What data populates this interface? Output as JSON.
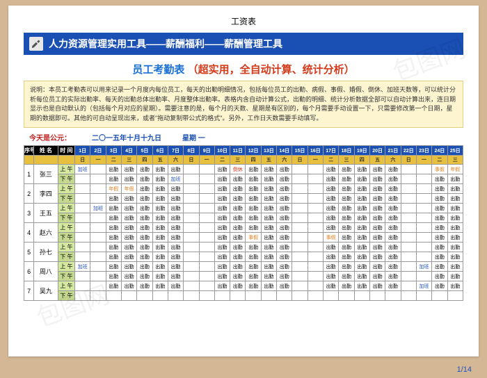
{
  "doc_title": "工资表",
  "banner_text": "人力资源管理实用工具——薪酬福利——薪酬管理工具",
  "subtitle_blue": "员工考勤表",
  "subtitle_red": "（超实用，全自动计算、统计分析）",
  "description": "说明：本员工考勤表可以用来记录一个月度内每位员工，每天的出勤明细情况，包括每位员工的出勤、病假、事假、婚假、倒休、加班天数等，可以统计分析每位员工的实际出勤率、每天的出勤总体出勤率、月度整体出勤率。表格内含自动计算公式，出勤的明细、统计分析数据全部可以自动计算出来，连日期显示也是自动默认的（包括每个月对应的星期）。需要注意的是，每个月的天数、星期是有区别的，每个月需要手动设置一下，只需要修改第一个日期，星期的数据即可。其他的可自动呈现出来，或者\"拖动复制带公式的格式\"。另外，工作日天数需要手动填写。",
  "today_label": "今天是公元：",
  "today_date": "二〇一五年十月十九日",
  "today_weekday": "星期 一",
  "header_cols": {
    "idx": "序号",
    "name": "姓 名",
    "period": "时 间"
  },
  "days": [
    "1日",
    "2日",
    "3日",
    "4日",
    "5日",
    "6日",
    "7日",
    "8日",
    "9日",
    "10日",
    "11日",
    "12日",
    "13日",
    "14日",
    "15日",
    "16日",
    "17日",
    "18日",
    "19日",
    "20日",
    "21日",
    "22日",
    "23日",
    "24日",
    "25日"
  ],
  "weekdays": [
    "日",
    "一",
    "二",
    "三",
    "四",
    "五",
    "六",
    "日",
    "一",
    "二",
    "三",
    "四",
    "五",
    "六",
    "日",
    "一",
    "二",
    "三",
    "四",
    "五",
    "六",
    "日",
    "一",
    "二",
    "三"
  ],
  "period_am": "上 午",
  "period_pm": "下 午",
  "employees": [
    {
      "idx": "1",
      "name": "张三",
      "am": [
        "加班",
        "",
        "出勤",
        "出勤",
        "出勤",
        "出勤",
        "出勤",
        "",
        "",
        "出勤",
        "倒休",
        "出勤",
        "出勤",
        "出勤",
        "",
        "",
        "出勤",
        "出勤",
        "出勤",
        "出勤",
        "出勤",
        "",
        "",
        "事假",
        "年假"
      ],
      "pm": [
        "",
        "",
        "出勤",
        "出勤",
        "出勤",
        "出勤",
        "加班",
        "",
        "",
        "出勤",
        "出勤",
        "出勤",
        "出勤",
        "出勤",
        "",
        "",
        "出勤",
        "出勤",
        "出勤",
        "出勤",
        "出勤",
        "",
        "",
        "出勤",
        "出勤"
      ]
    },
    {
      "idx": "2",
      "name": "李四",
      "am": [
        "",
        "",
        "年假",
        "年假",
        "出勤",
        "出勤",
        "出勤",
        "",
        "",
        "出勤",
        "出勤",
        "出勤",
        "出勤",
        "出勤",
        "",
        "",
        "出勤",
        "出勤",
        "出勤",
        "出勤",
        "出勤",
        "",
        "",
        "出勤",
        "出勤"
      ],
      "pm": [
        "",
        "",
        "出勤",
        "出勤",
        "出勤",
        "出勤",
        "出勤",
        "",
        "",
        "出勤",
        "出勤",
        "出勤",
        "出勤",
        "出勤",
        "",
        "",
        "出勤",
        "出勤",
        "出勤",
        "出勤",
        "出勤",
        "",
        "",
        "出勤",
        "出勤"
      ]
    },
    {
      "idx": "3",
      "name": "王五",
      "am": [
        "",
        "加班",
        "出勤",
        "出勤",
        "出勤",
        "出勤",
        "出勤",
        "",
        "",
        "出勤",
        "出勤",
        "出勤",
        "出勤",
        "出勤",
        "",
        "",
        "出勤",
        "出勤",
        "出勤",
        "出勤",
        "出勤",
        "",
        "",
        "出勤",
        "出勤"
      ],
      "pm": [
        "",
        "",
        "出勤",
        "出勤",
        "出勤",
        "出勤",
        "出勤",
        "",
        "",
        "出勤",
        "出勤",
        "出勤",
        "出勤",
        "出勤",
        "",
        "",
        "出勤",
        "出勤",
        "出勤",
        "出勤",
        "出勤",
        "",
        "",
        "出勤",
        "出勤"
      ]
    },
    {
      "idx": "4",
      "name": "赵六",
      "am": [
        "",
        "",
        "出勤",
        "出勤",
        "出勤",
        "出勤",
        "出勤",
        "",
        "",
        "出勤",
        "出勤",
        "出勤",
        "出勤",
        "出勤",
        "",
        "",
        "出勤",
        "出勤",
        "出勤",
        "出勤",
        "出勤",
        "",
        "",
        "出勤",
        "出勤"
      ],
      "pm": [
        "",
        "",
        "出勤",
        "出勤",
        "出勤",
        "出勤",
        "出勤",
        "",
        "",
        "出勤",
        "出勤",
        "事假",
        "出勤",
        "出勤",
        "",
        "",
        "事假",
        "出勤",
        "出勤",
        "出勤",
        "出勤",
        "",
        "",
        "出勤",
        "出勤"
      ]
    },
    {
      "idx": "5",
      "name": "孙七",
      "am": [
        "",
        "",
        "出勤",
        "出勤",
        "出勤",
        "出勤",
        "出勤",
        "",
        "",
        "出勤",
        "出勤",
        "出勤",
        "出勤",
        "出勤",
        "",
        "",
        "出勤",
        "出勤",
        "出勤",
        "出勤",
        "出勤",
        "",
        "",
        "出勤",
        "出勤"
      ],
      "pm": [
        "",
        "",
        "出勤",
        "出勤",
        "出勤",
        "出勤",
        "出勤",
        "",
        "",
        "出勤",
        "出勤",
        "出勤",
        "出勤",
        "出勤",
        "",
        "",
        "出勤",
        "出勤",
        "出勤",
        "出勤",
        "出勤",
        "",
        "",
        "出勤",
        "出勤"
      ]
    },
    {
      "idx": "6",
      "name": "周八",
      "am": [
        "加班",
        "",
        "出勤",
        "出勤",
        "出勤",
        "出勤",
        "出勤",
        "",
        "",
        "出勤",
        "出勤",
        "出勤",
        "出勤",
        "出勤",
        "",
        "",
        "出勤",
        "出勤",
        "出勤",
        "出勤",
        "出勤",
        "",
        "加班",
        "出勤",
        "出勤"
      ],
      "pm": [
        "",
        "",
        "出勤",
        "出勤",
        "出勤",
        "出勤",
        "出勤",
        "",
        "",
        "出勤",
        "出勤",
        "出勤",
        "出勤",
        "出勤",
        "",
        "",
        "出勤",
        "出勤",
        "出勤",
        "出勤",
        "出勤",
        "",
        "",
        "出勤",
        "出勤"
      ]
    },
    {
      "idx": "7",
      "name": "吴九",
      "am": [
        "",
        "",
        "出勤",
        "出勤",
        "出勤",
        "出勤",
        "出勤",
        "",
        "",
        "出勤",
        "出勤",
        "出勤",
        "出勤",
        "出勤",
        "",
        "",
        "出勤",
        "出勤",
        "出勤",
        "出勤",
        "出勤",
        "",
        "加班",
        "出勤",
        "出勤"
      ],
      "pm": []
    }
  ],
  "pager": "1/14",
  "colors": {
    "banner": "#1a4fb3",
    "subtitle_blue": "#1a6fd4",
    "subtitle_red": "#d43a1a",
    "desc_bg": "#fdf4d0"
  }
}
